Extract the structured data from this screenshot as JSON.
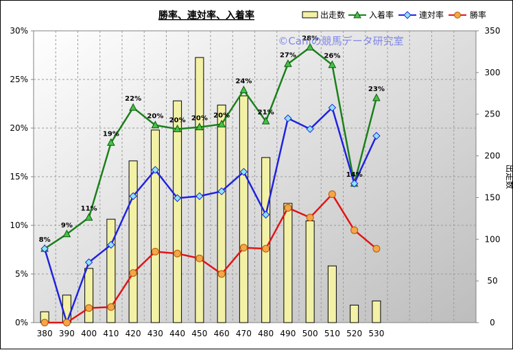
{
  "chart_data": {
    "type": "bar+line",
    "title": "勝率、連対率、入着率",
    "watermark": "©Caniの競馬データ研究室",
    "categories": [
      "380",
      "390",
      "400",
      "410",
      "420",
      "430",
      "440",
      "450",
      "460",
      "470",
      "480",
      "490",
      "500",
      "510",
      "520",
      "530"
    ],
    "bar_series": {
      "name": "出走数",
      "axis": "right",
      "color": "#f3f1a6",
      "values": [
        13,
        33,
        65,
        124,
        194,
        231,
        266,
        318,
        261,
        272,
        198,
        143,
        122,
        68,
        21,
        26
      ]
    },
    "line_series": [
      {
        "name": "入着率",
        "axis": "left",
        "color": "#1a7f1a",
        "marker": "triangle",
        "values": [
          7.6,
          9.1,
          10.8,
          18.5,
          22.1,
          20.3,
          19.9,
          20.1,
          20.4,
          23.9,
          20.7,
          26.6,
          28.3,
          26.5,
          14.3,
          23.1
        ],
        "labels": [
          "8%",
          "9%",
          "11%",
          "19%",
          "22%",
          "20%",
          "20%",
          "20%",
          "20%",
          "24%",
          "21%",
          "27%",
          "28%",
          "26%",
          "14%",
          "23%"
        ]
      },
      {
        "name": "連対率",
        "axis": "left",
        "color": "#1f22e0",
        "marker": "diamond",
        "values": [
          7.6,
          0.0,
          6.2,
          8.0,
          13.0,
          15.7,
          12.8,
          13.0,
          13.5,
          15.5,
          11.1,
          21.0,
          19.9,
          22.1,
          14.3,
          19.2
        ]
      },
      {
        "name": "勝率",
        "axis": "left",
        "color": "#e01414",
        "marker": "circle",
        "values": [
          0.0,
          0.0,
          1.5,
          1.6,
          5.1,
          7.3,
          7.1,
          6.6,
          5.0,
          7.7,
          7.6,
          11.8,
          10.8,
          13.2,
          9.5,
          7.6
        ]
      }
    ],
    "y_left": {
      "min": 0,
      "max": 30,
      "step": 5,
      "format": "percent"
    },
    "y_right": {
      "min": 0,
      "max": 350,
      "step": 50,
      "label": "出走数"
    },
    "legend": {
      "position": "top-right",
      "entries": [
        "出走数",
        "入着率",
        "連対率",
        "勝率"
      ]
    },
    "grid": true
  }
}
